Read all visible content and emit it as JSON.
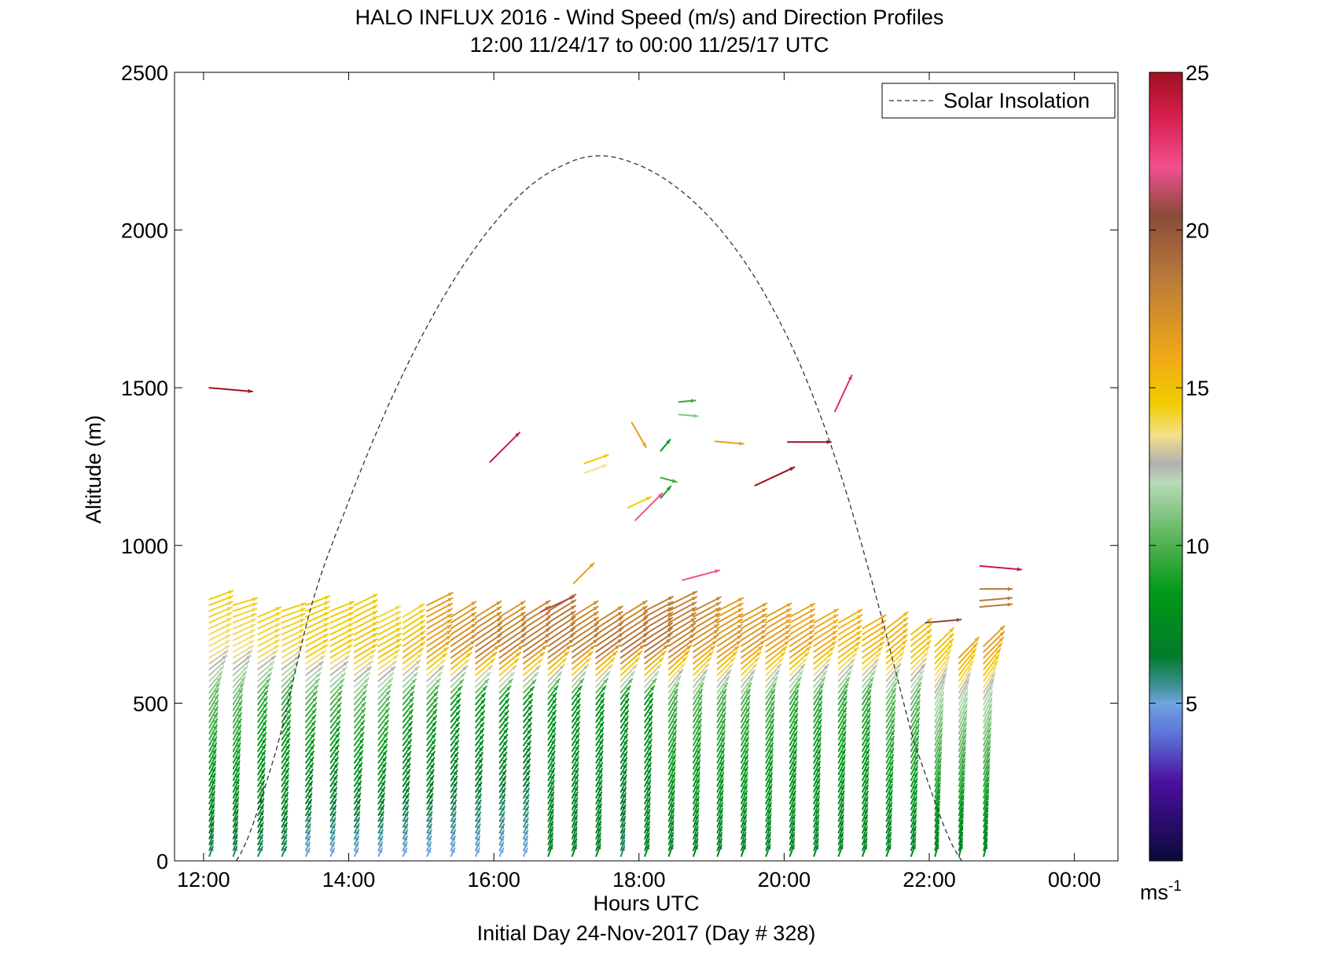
{
  "chart_data": {
    "type": "wind-barb-profile",
    "title": "HALO INFLUX 2016 - Wind Speed (m/s) and Direction Profiles",
    "subtitle": "12:00 11/24/17 to 00:00 11/25/17  UTC",
    "xlabel": "Hours UTC",
    "xlabel2": "Initial Day 24-Nov-2017 (Day # 328)",
    "ylabel": "Altitude (m)",
    "xlim": [
      11.6,
      24.6
    ],
    "ylim": [
      0,
      2500
    ],
    "xticks": [
      12,
      14,
      16,
      18,
      20,
      22,
      24
    ],
    "xtick_labels": [
      "12:00",
      "14:00",
      "16:00",
      "18:00",
      "20:00",
      "22:00",
      "00:00"
    ],
    "yticks": [
      0,
      500,
      1000,
      1500,
      2000,
      2500
    ],
    "ytick_labels": [
      "0",
      "500",
      "1000",
      "1500",
      "2000",
      "2500"
    ],
    "legend": {
      "label": "Solar Insolation",
      "placement": "top-right"
    },
    "colorbar": {
      "range": [
        0,
        25
      ],
      "ticks": [
        5,
        10,
        15,
        20,
        25
      ],
      "tick_labels": [
        "5",
        "10",
        "15",
        "20",
        "25"
      ],
      "unit": "ms",
      "unit_exp": "-1",
      "stops": [
        {
          "v": 0.0,
          "c": "#0a0a3a"
        },
        {
          "v": 2.5,
          "c": "#4b0fa0"
        },
        {
          "v": 4.0,
          "c": "#5b73d8"
        },
        {
          "v": 5.0,
          "c": "#6fa3e0"
        },
        {
          "v": 5.6,
          "c": "#3a8f8f"
        },
        {
          "v": 6.5,
          "c": "#007a2a"
        },
        {
          "v": 8.5,
          "c": "#009a18"
        },
        {
          "v": 10.0,
          "c": "#4fb04f"
        },
        {
          "v": 12.0,
          "c": "#b8dbb8"
        },
        {
          "v": 12.6,
          "c": "#b0b0b0"
        },
        {
          "v": 13.5,
          "c": "#f5e08a"
        },
        {
          "v": 14.5,
          "c": "#f0cc00"
        },
        {
          "v": 16.0,
          "c": "#f0a818"
        },
        {
          "v": 18.5,
          "c": "#b87a3a"
        },
        {
          "v": 20.5,
          "c": "#8a4a3a"
        },
        {
          "v": 22.0,
          "c": "#f25090"
        },
        {
          "v": 23.5,
          "c": "#d82050"
        },
        {
          "v": 25.0,
          "c": "#a01020"
        }
      ]
    },
    "solar_insolation": {
      "hours": [
        12.45,
        13.0,
        13.5,
        14.0,
        14.5,
        15.0,
        15.5,
        16.0,
        16.5,
        17.0,
        17.4,
        17.8,
        18.3,
        18.8,
        19.3,
        19.8,
        20.3,
        20.8,
        21.3,
        21.8,
        22.45
      ],
      "altitude_m": [
        0,
        350,
        820,
        1140,
        1420,
        1660,
        1860,
        2020,
        2140,
        2210,
        2235,
        2222,
        2170,
        2080,
        1950,
        1770,
        1530,
        1210,
        810,
        370,
        0
      ]
    },
    "profiles": {
      "hours": [
        12.08,
        12.41,
        12.75,
        13.08,
        13.41,
        13.75,
        14.08,
        14.41,
        14.75,
        15.08,
        15.41,
        15.75,
        16.08,
        16.41,
        16.75,
        17.08,
        17.41,
        17.75,
        18.08,
        18.41,
        18.75,
        19.08,
        19.41,
        19.75,
        20.08,
        20.41,
        20.75,
        21.08,
        21.41,
        21.75,
        22.08,
        22.41,
        22.75
      ],
      "top_altitude_m": [
        830,
        820,
        790,
        800,
        820,
        800,
        820,
        780,
        790,
        820,
        780,
        790,
        790,
        790,
        800,
        790,
        770,
        790,
        800,
        820,
        810,
        800,
        790,
        790,
        790,
        770,
        760,
        750,
        750,
        720,
        690,
        650,
        690
      ],
      "levels_m": [
        20,
        500,
        650,
        830
      ],
      "speed_ms": [
        [
          6,
          10.5,
          13.5,
          14.5
        ],
        [
          6,
          10.5,
          13.5,
          14.5
        ],
        [
          6,
          9.5,
          14,
          14.5
        ],
        [
          6,
          9.5,
          14,
          14.5
        ],
        [
          5,
          10,
          14.5,
          14.5
        ],
        [
          5,
          10,
          14.5,
          14.5
        ],
        [
          5,
          10.5,
          15,
          14.5
        ],
        [
          5,
          10.5,
          15,
          13.5
        ],
        [
          5,
          9.5,
          15.5,
          13.5
        ],
        [
          5,
          9.5,
          16.5,
          16.5
        ],
        [
          5,
          8.5,
          17.5,
          16.5
        ],
        [
          5,
          8.5,
          18.5,
          16.5
        ],
        [
          5,
          8.5,
          18.5,
          16.5
        ],
        [
          5,
          8,
          18.5,
          17.5
        ],
        [
          7,
          8,
          18.5,
          18.5
        ],
        [
          7,
          8,
          18.5,
          17
        ],
        [
          7,
          8,
          19,
          17
        ],
        [
          6,
          8,
          19,
          17
        ],
        [
          7,
          8,
          19,
          18
        ],
        [
          7,
          10,
          18,
          18
        ],
        [
          7,
          10,
          17,
          18
        ],
        [
          7,
          10,
          17,
          16.5
        ],
        [
          7,
          10,
          17,
          16.5
        ],
        [
          7,
          10,
          16.5,
          16.5
        ],
        [
          7,
          9.5,
          16.5,
          16
        ],
        [
          7,
          9.5,
          16,
          16
        ],
        [
          7,
          9.5,
          15.5,
          15.5
        ],
        [
          7,
          9.5,
          15.5,
          15.5
        ],
        [
          7,
          10.5,
          15.5,
          15.5
        ],
        [
          7,
          10.5,
          15,
          15
        ],
        [
          7,
          12,
          15,
          15
        ],
        [
          7,
          12,
          16.5,
          17
        ],
        [
          7,
          12,
          16.5,
          17
        ]
      ],
      "direction_deg": [
        [
          200,
          210,
          240,
          250
        ],
        [
          200,
          210,
          240,
          255
        ],
        [
          205,
          215,
          240,
          250
        ],
        [
          205,
          215,
          240,
          255
        ],
        [
          205,
          220,
          240,
          250
        ],
        [
          205,
          220,
          240,
          250
        ],
        [
          205,
          220,
          240,
          245
        ],
        [
          205,
          220,
          240,
          245
        ],
        [
          205,
          220,
          235,
          240
        ],
        [
          205,
          220,
          235,
          245
        ],
        [
          205,
          220,
          235,
          240
        ],
        [
          205,
          220,
          235,
          240
        ],
        [
          205,
          220,
          235,
          240
        ],
        [
          205,
          220,
          235,
          240
        ],
        [
          200,
          215,
          235,
          240
        ],
        [
          200,
          215,
          235,
          240
        ],
        [
          200,
          215,
          235,
          240
        ],
        [
          200,
          215,
          235,
          240
        ],
        [
          200,
          215,
          235,
          245
        ],
        [
          200,
          210,
          235,
          245
        ],
        [
          200,
          210,
          235,
          245
        ],
        [
          200,
          210,
          235,
          245
        ],
        [
          200,
          210,
          235,
          245
        ],
        [
          200,
          210,
          235,
          245
        ],
        [
          200,
          210,
          235,
          245
        ],
        [
          200,
          210,
          235,
          245
        ],
        [
          200,
          210,
          235,
          245
        ],
        [
          200,
          210,
          235,
          245
        ],
        [
          200,
          210,
          230,
          235
        ],
        [
          200,
          210,
          230,
          235
        ],
        [
          195,
          205,
          225,
          230
        ],
        [
          195,
          205,
          225,
          230
        ],
        [
          195,
          205,
          225,
          230
        ]
      ]
    },
    "isolated_vectors": [
      {
        "h": 12.08,
        "alt": 1500,
        "speed": 25,
        "dir": 275
      },
      {
        "h": 15.95,
        "alt": 1265,
        "speed": 24,
        "dir": 225
      },
      {
        "h": 17.25,
        "alt": 1260,
        "speed": 14.5,
        "dir": 250
      },
      {
        "h": 17.25,
        "alt": 1230,
        "speed": 13.5,
        "dir": 250
      },
      {
        "h": 17.9,
        "alt": 1390,
        "speed": 16.5,
        "dir": 330
      },
      {
        "h": 18.3,
        "alt": 1300,
        "speed": 8.5,
        "dir": 220
      },
      {
        "h": 18.3,
        "alt": 1215,
        "speed": 9.5,
        "dir": 285
      },
      {
        "h": 18.3,
        "alt": 1150,
        "speed": 9,
        "dir": 220
      },
      {
        "h": 17.85,
        "alt": 1120,
        "speed": 14.5,
        "dir": 245
      },
      {
        "h": 17.95,
        "alt": 1080,
        "speed": 22,
        "dir": 225
      },
      {
        "h": 18.55,
        "alt": 1455,
        "speed": 9.5,
        "dir": 265
      },
      {
        "h": 18.55,
        "alt": 1415,
        "speed": 11,
        "dir": 275
      },
      {
        "h": 19.05,
        "alt": 1330,
        "speed": 16.5,
        "dir": 275
      },
      {
        "h": 20.05,
        "alt": 1328,
        "speed": 25,
        "dir": 270
      },
      {
        "h": 19.6,
        "alt": 1190,
        "speed": 25,
        "dir": 245
      },
      {
        "h": 20.7,
        "alt": 1425,
        "speed": 23,
        "dir": 205
      },
      {
        "h": 17.1,
        "alt": 880,
        "speed": 16.5,
        "dir": 225
      },
      {
        "h": 18.6,
        "alt": 890,
        "speed": 22,
        "dir": 255
      },
      {
        "h": 16.65,
        "alt": 790,
        "speed": 21,
        "dir": 245
      },
      {
        "h": 21.95,
        "alt": 755,
        "speed": 20.5,
        "dir": 265
      },
      {
        "h": 22.7,
        "alt": 935,
        "speed": 24,
        "dir": 275
      },
      {
        "h": 22.7,
        "alt": 862,
        "speed": 18.5,
        "dir": 270
      },
      {
        "h": 22.7,
        "alt": 825,
        "speed": 18.5,
        "dir": 265
      },
      {
        "h": 22.7,
        "alt": 805,
        "speed": 18.5,
        "dir": 265
      }
    ]
  }
}
